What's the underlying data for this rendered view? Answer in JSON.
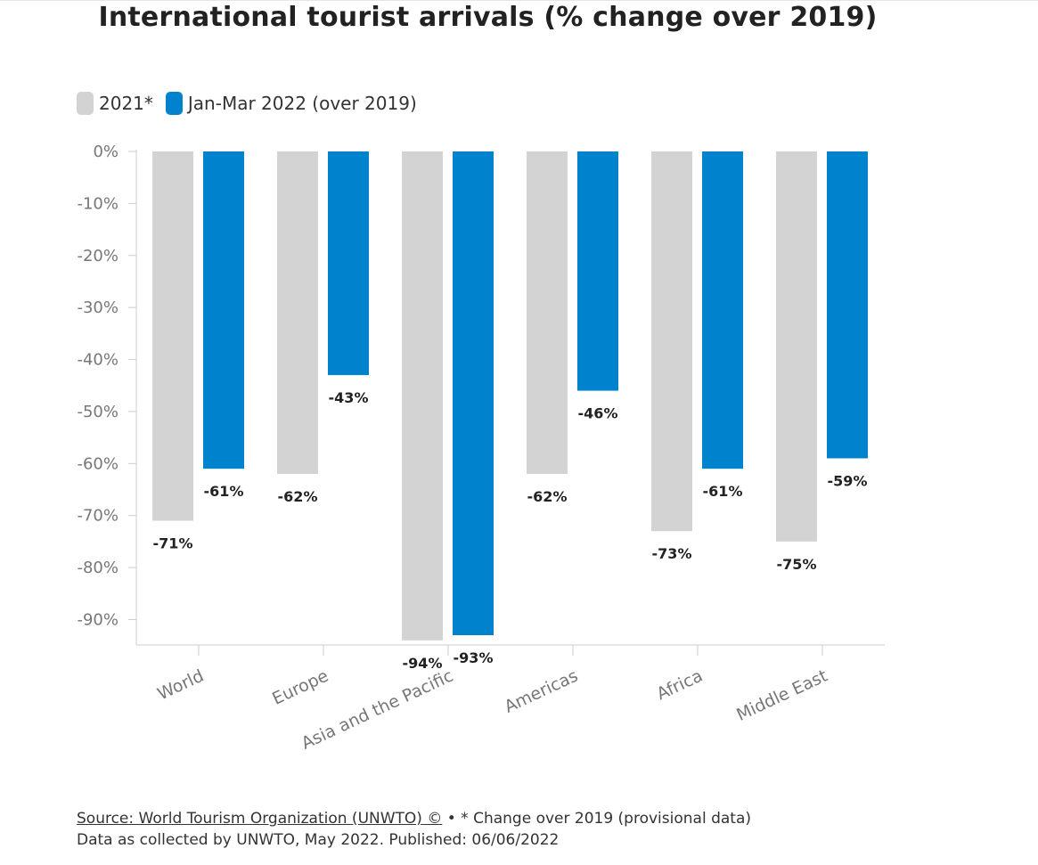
{
  "title": "International tourist arrivals (% change over 2019)",
  "legend": [
    {
      "label": "2021*",
      "color": "#d3d3d3"
    },
    {
      "label": "Jan-Mar 2022 (over 2019)",
      "color": "#0182cc"
    }
  ],
  "chart_data": {
    "type": "bar",
    "title": "International tourist arrivals (% change over 2019)",
    "categories": [
      "World",
      "Europe",
      "Asia and the Pacific",
      "Americas",
      "Africa",
      "Middle East"
    ],
    "series": [
      {
        "name": "2021*",
        "color": "#d3d3d3",
        "values": [
          -71,
          -62,
          -94,
          -62,
          -73,
          -75
        ],
        "labels": [
          "-71%",
          "-62%",
          "-94%",
          "-62%",
          "-73%",
          "-75%"
        ]
      },
      {
        "name": "Jan-Mar 2022 (over 2019)",
        "color": "#0182cc",
        "values": [
          -61,
          -43,
          -93,
          -46,
          -61,
          -59
        ],
        "labels": [
          "-61%",
          "-43%",
          "-93%",
          "-46%",
          "-61%",
          "-59%"
        ]
      }
    ],
    "yticks": [
      "0%",
      "-10%",
      "-20%",
      "-30%",
      "-40%",
      "-50%",
      "-60%",
      "-70%",
      "-80%",
      "-90%"
    ],
    "ytick_values": [
      0,
      -10,
      -20,
      -30,
      -40,
      -50,
      -60,
      -70,
      -80,
      -90
    ],
    "ylim": [
      -95,
      0
    ],
    "xlabel": "",
    "ylabel": ""
  },
  "source": {
    "link_text": "Source: World Tourism Organization (UNWTO) ©",
    "note": " • * Change over 2019 (provisional data)",
    "line2": "Data as collected by UNWTO, May 2022. Published: 06/06/2022"
  }
}
